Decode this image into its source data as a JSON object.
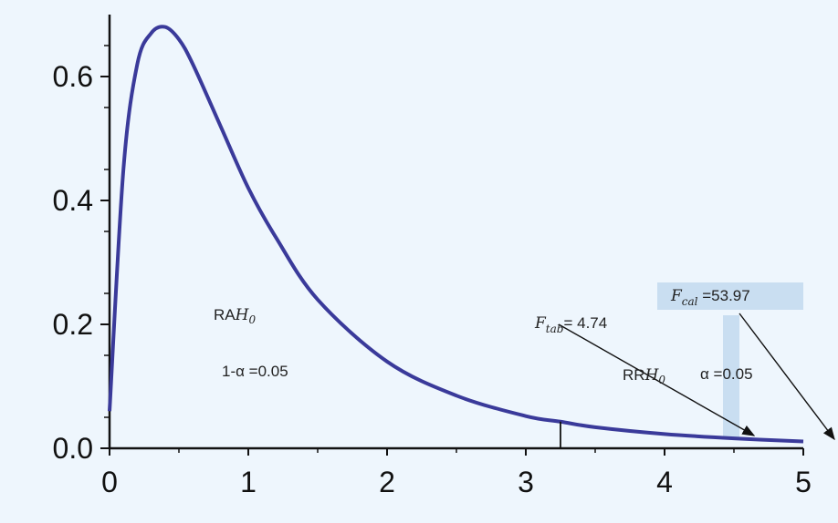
{
  "chart_data": {
    "type": "line",
    "title": "",
    "xlabel": "",
    "ylabel": "",
    "xlim": [
      0,
      5
    ],
    "ylim": [
      0,
      0.7
    ],
    "x_ticks": [
      "0",
      "1",
      "2",
      "3",
      "4",
      "5"
    ],
    "y_ticks": [
      "0.0",
      "0.2",
      "0.4",
      "0.6"
    ],
    "y_tick_values": [
      0.0,
      0.2,
      0.4,
      0.6
    ],
    "grid": false,
    "series": [
      {
        "color": "#3a3a9a",
        "x": [
          0,
          0.1,
          0.2,
          0.3,
          0.4,
          0.5,
          0.6,
          0.8,
          1.0,
          1.2,
          1.5,
          2.0,
          2.5,
          3.0,
          3.25,
          3.5,
          4.0,
          4.5,
          5.0
        ],
        "y": [
          0.06,
          0.45,
          0.62,
          0.67,
          0.68,
          0.66,
          0.62,
          0.52,
          0.42,
          0.34,
          0.24,
          0.14,
          0.085,
          0.052,
          0.043,
          0.034,
          0.023,
          0.016,
          0.011
        ]
      }
    ],
    "critical_line_x": 3.25,
    "annotations": {
      "ra_base": "RA",
      "ra_sub": "H",
      "ra_subsub": "0",
      "one_minus_alpha": "1-α =0.05",
      "ftab_base": "F",
      "ftab_sub": "tab",
      "ftab_value": "= 4.74",
      "rr_base": "RR",
      "rr_sub": "H",
      "rr_subsub": "0",
      "alpha": "α =0.05",
      "fcal_base": "F",
      "fcal_sub": "cal",
      "fcal_value": " =53.97"
    },
    "colors": {
      "background": "#eef6fd",
      "curve": "#3a3a9a",
      "axis": "#111111",
      "highlight": "#c9def1"
    }
  }
}
